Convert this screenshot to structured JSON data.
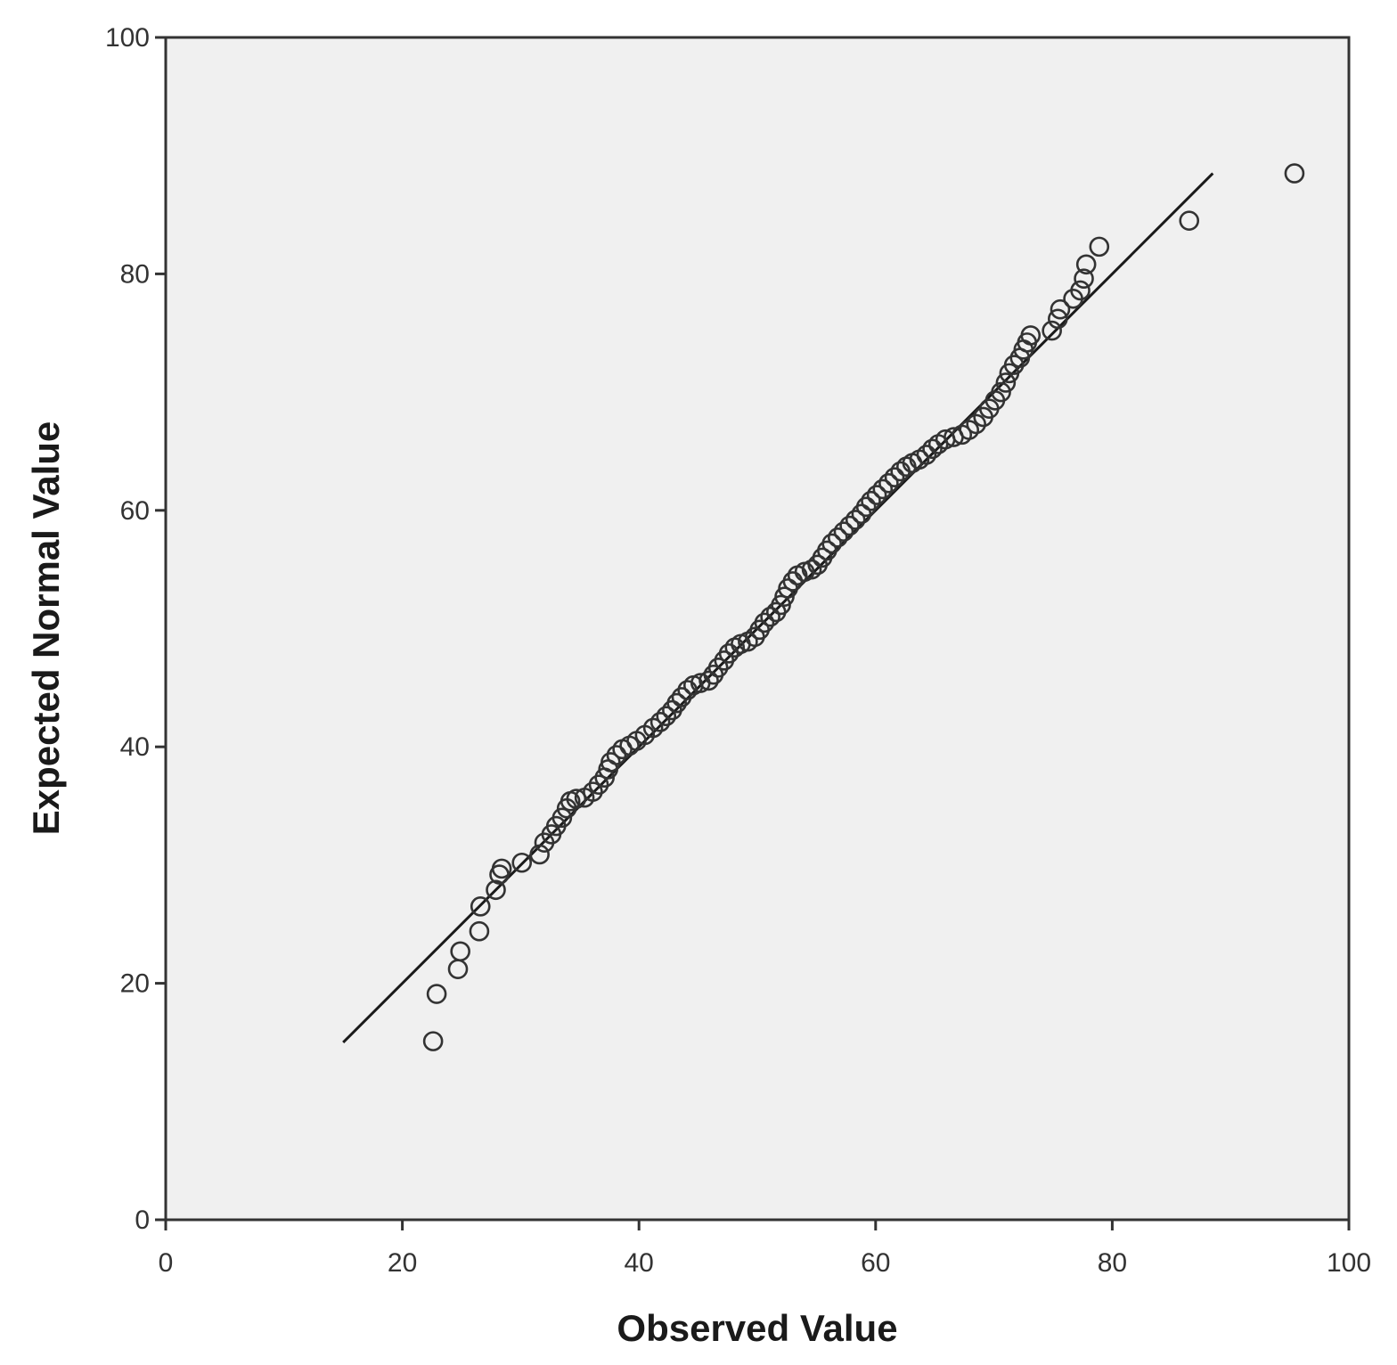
{
  "chart_data": {
    "type": "scatter",
    "title": "",
    "xlabel": "Observed Value",
    "ylabel": "Expected Normal Value",
    "xlim": [
      0,
      100
    ],
    "ylim": [
      0,
      100
    ],
    "xticks": [
      "0",
      "20",
      "40",
      "60",
      "80",
      "100"
    ],
    "yticks": [
      "0",
      "20",
      "40",
      "60",
      "80",
      "100"
    ],
    "grid": false,
    "plot_background": "#f0f0f0",
    "marker": "open-circle",
    "reference_line": {
      "x": [
        15,
        88.5
      ],
      "y": [
        15,
        88.5
      ]
    },
    "series": [
      {
        "points": [
          [
            22.6,
            15.1
          ],
          [
            22.9,
            19.1
          ],
          [
            24.7,
            21.2
          ],
          [
            24.9,
            22.7
          ],
          [
            26.5,
            24.4
          ],
          [
            26.6,
            26.5
          ],
          [
            27.9,
            27.9
          ],
          [
            28.2,
            29.2
          ],
          [
            28.4,
            29.7
          ],
          [
            30.1,
            30.2
          ],
          [
            31.6,
            30.9
          ],
          [
            32.0,
            31.9
          ],
          [
            32.6,
            32.6
          ],
          [
            33.0,
            33.3
          ],
          [
            33.5,
            34.0
          ],
          [
            33.9,
            34.8
          ],
          [
            34.2,
            35.4
          ],
          [
            34.7,
            35.6
          ],
          [
            35.4,
            35.7
          ],
          [
            36.1,
            36.2
          ],
          [
            36.6,
            36.8
          ],
          [
            37.1,
            37.4
          ],
          [
            37.4,
            38.1
          ],
          [
            37.6,
            38.7
          ],
          [
            38.1,
            39.3
          ],
          [
            38.6,
            39.8
          ],
          [
            39.2,
            40.1
          ],
          [
            39.8,
            40.5
          ],
          [
            40.5,
            41.0
          ],
          [
            41.2,
            41.6
          ],
          [
            41.8,
            42.1
          ],
          [
            42.3,
            42.6
          ],
          [
            42.8,
            43.1
          ],
          [
            43.2,
            43.7
          ],
          [
            43.6,
            44.2
          ],
          [
            44.1,
            44.8
          ],
          [
            44.6,
            45.2
          ],
          [
            45.2,
            45.4
          ],
          [
            45.9,
            45.6
          ],
          [
            46.3,
            46.1
          ],
          [
            46.7,
            46.7
          ],
          [
            47.2,
            47.3
          ],
          [
            47.6,
            47.9
          ],
          [
            48.1,
            48.4
          ],
          [
            48.6,
            48.7
          ],
          [
            49.2,
            48.9
          ],
          [
            49.8,
            49.3
          ],
          [
            50.2,
            49.9
          ],
          [
            50.6,
            50.5
          ],
          [
            51.1,
            51.0
          ],
          [
            51.6,
            51.4
          ],
          [
            52.0,
            52.0
          ],
          [
            52.3,
            52.7
          ],
          [
            52.6,
            53.4
          ],
          [
            53.0,
            54.0
          ],
          [
            53.4,
            54.5
          ],
          [
            54.0,
            54.8
          ],
          [
            54.6,
            55.0
          ],
          [
            55.1,
            55.4
          ],
          [
            55.5,
            56.0
          ],
          [
            55.9,
            56.6
          ],
          [
            56.3,
            57.2
          ],
          [
            56.8,
            57.7
          ],
          [
            57.3,
            58.2
          ],
          [
            57.8,
            58.7
          ],
          [
            58.3,
            59.2
          ],
          [
            58.8,
            59.7
          ],
          [
            59.2,
            60.3
          ],
          [
            59.6,
            60.8
          ],
          [
            60.1,
            61.3
          ],
          [
            60.6,
            61.8
          ],
          [
            61.1,
            62.3
          ],
          [
            61.6,
            62.8
          ],
          [
            62.1,
            63.3
          ],
          [
            62.6,
            63.7
          ],
          [
            63.1,
            64.0
          ],
          [
            63.7,
            64.3
          ],
          [
            64.3,
            64.7
          ],
          [
            64.8,
            65.2
          ],
          [
            65.3,
            65.6
          ],
          [
            65.9,
            66.0
          ],
          [
            66.6,
            66.2
          ],
          [
            67.3,
            66.4
          ],
          [
            67.9,
            66.8
          ],
          [
            68.5,
            67.3
          ],
          [
            69.1,
            67.9
          ],
          [
            69.6,
            68.6
          ],
          [
            70.1,
            69.3
          ],
          [
            70.6,
            70.0
          ],
          [
            71.0,
            70.8
          ],
          [
            71.3,
            71.6
          ],
          [
            71.7,
            72.3
          ],
          [
            72.2,
            72.9
          ],
          [
            72.5,
            73.6
          ],
          [
            72.8,
            74.2
          ],
          [
            73.1,
            74.8
          ],
          [
            74.9,
            75.2
          ],
          [
            75.4,
            76.2
          ],
          [
            75.6,
            77.0
          ],
          [
            76.7,
            77.9
          ],
          [
            77.3,
            78.6
          ],
          [
            77.6,
            79.6
          ],
          [
            77.8,
            80.8
          ],
          [
            78.9,
            82.3
          ],
          [
            86.5,
            84.5
          ],
          [
            95.4,
            88.5
          ]
        ]
      }
    ]
  }
}
